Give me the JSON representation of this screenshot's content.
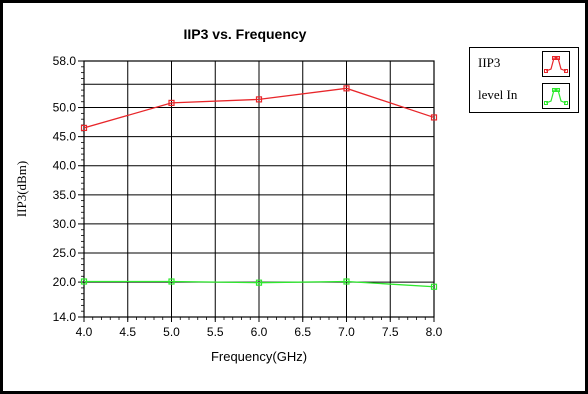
{
  "chart_data": {
    "type": "line",
    "title": "IIP3 vs. Frequency",
    "xlabel": "Frequency(GHz)",
    "ylabel": "IIP3(dBm)",
    "xlim": [
      4.0,
      8.0
    ],
    "ylim": [
      14.0,
      58.0
    ],
    "xticks": [
      "4.0",
      "4.5",
      "5.0",
      "5.5",
      "6.0",
      "6.5",
      "7.0",
      "7.5",
      "8.0"
    ],
    "yticks": [
      {
        "value": 14.0,
        "label": "14.0"
      },
      {
        "value": 20.0,
        "label": "20.0"
      },
      {
        "value": 25.0,
        "label": "25.0"
      },
      {
        "value": 30.0,
        "label": "30.0"
      },
      {
        "value": 35.0,
        "label": "35.0"
      },
      {
        "value": 40.0,
        "label": "40.0"
      },
      {
        "value": 45.0,
        "label": "45.0"
      },
      {
        "value": 50.0,
        "label": "50.0"
      },
      {
        "value": 58.0,
        "label": "58.0"
      }
    ],
    "grid": true,
    "legend_position": "top-right, outside plot",
    "series": [
      {
        "name": "IIP3",
        "color": "#e8262a",
        "x": [
          4.0,
          5.0,
          6.0,
          7.0,
          8.0
        ],
        "values": [
          46.5,
          50.8,
          51.4,
          53.3,
          48.3
        ]
      },
      {
        "name": "level In",
        "color": "#2ee82e",
        "x": [
          4.0,
          5.0,
          6.0,
          7.0,
          8.0
        ],
        "values": [
          20.1,
          20.1,
          19.9,
          20.1,
          19.2
        ]
      }
    ]
  }
}
